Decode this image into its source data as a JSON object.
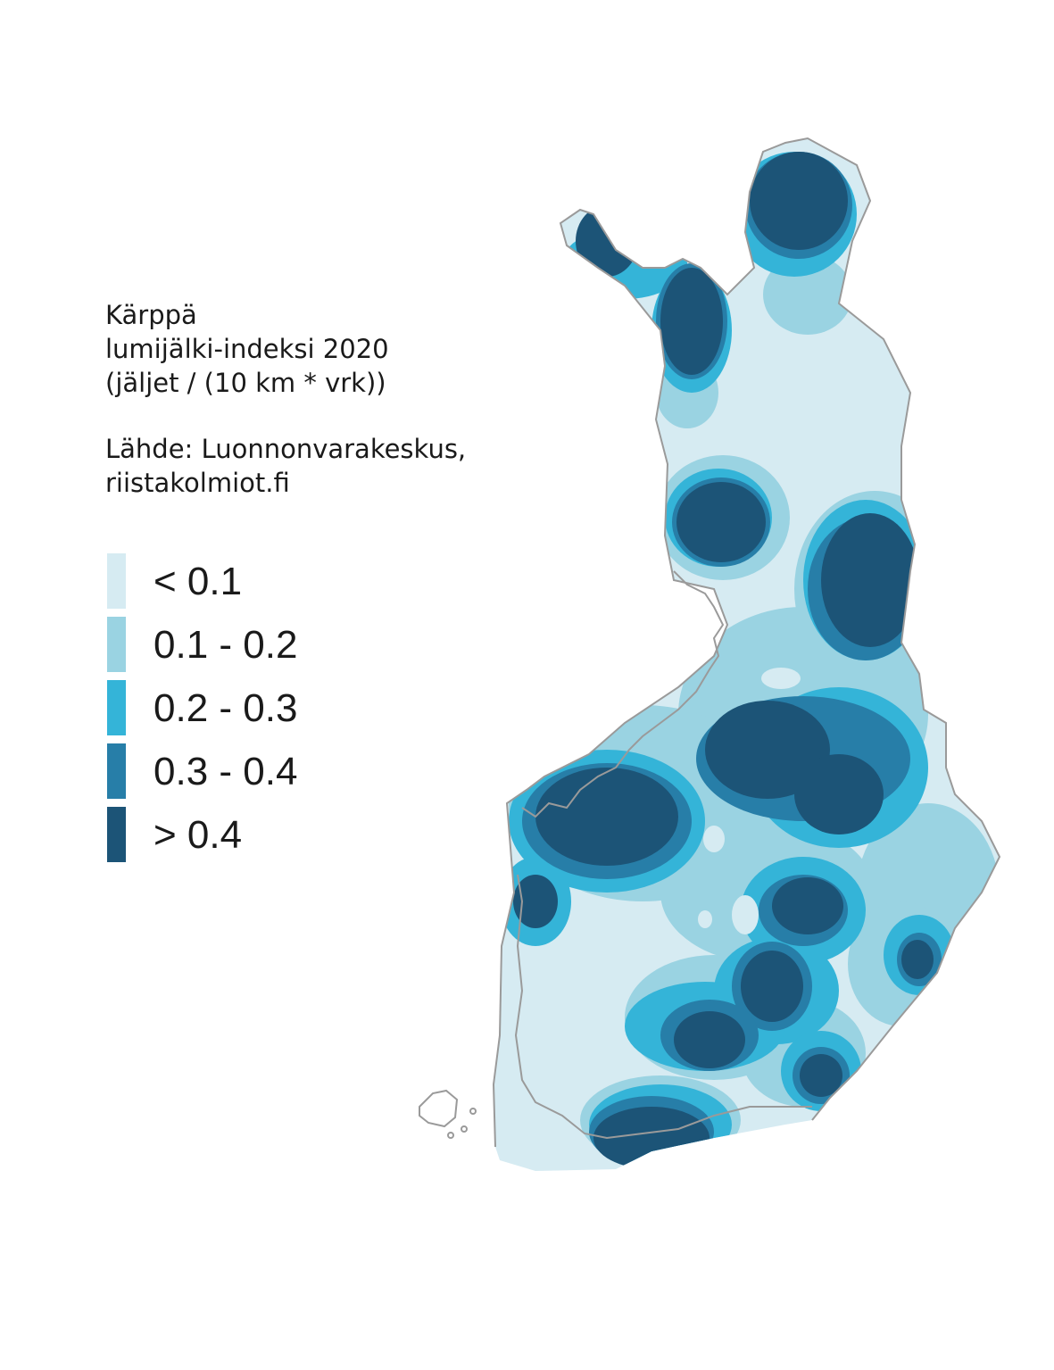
{
  "map": {
    "title_lines": [
      "Kärppä",
      "lumijälki-indeksi 2020",
      "(jäljet / (10 km * vrk))"
    ],
    "source_lines": [
      "Lähde: Luonnonvarakeskus,",
      "riistakolmiot.fi"
    ],
    "legend": [
      {
        "label": "< 0.1",
        "color": "#d6ebf2"
      },
      {
        "label": "0.1 - 0.2",
        "color": "#9ad3e2"
      },
      {
        "label": "0.2 - 0.3",
        "color": "#34b4d8"
      },
      {
        "label": "0.3 - 0.4",
        "color": "#277ea8"
      },
      {
        "label": "> 0.4",
        "color": "#1c5477"
      }
    ],
    "colors": {
      "border": "#9a9a9a",
      "background": "#ffffff"
    }
  }
}
